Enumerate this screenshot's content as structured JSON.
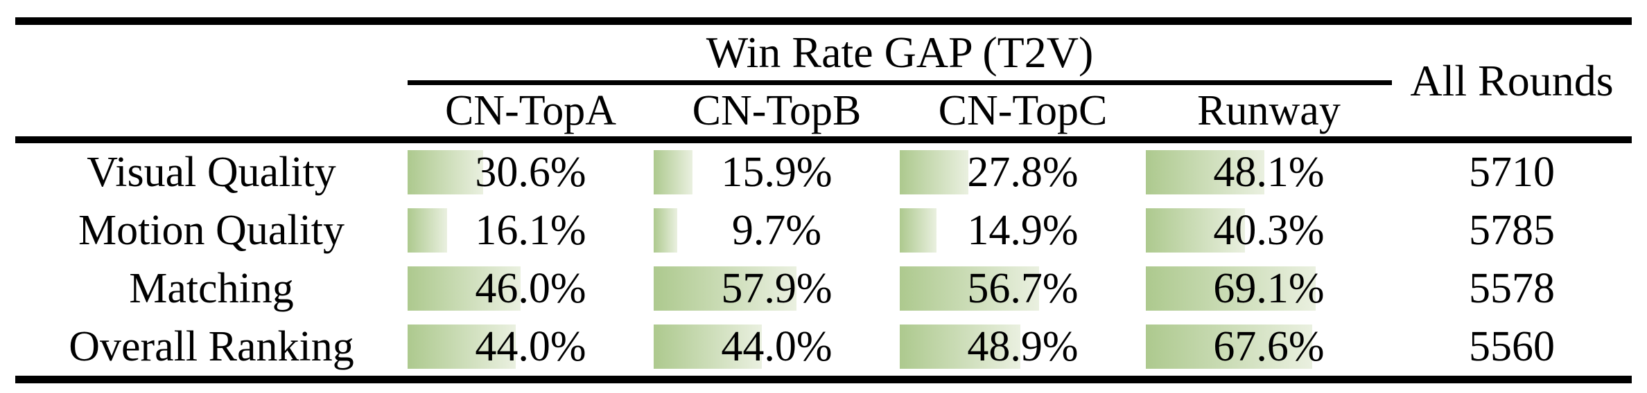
{
  "colors": {
    "background": "#ffffff",
    "text": "#000000",
    "rule": "#000000",
    "bar_gradient_start": "#adc98e",
    "bar_gradient_end": "#eaf0e0"
  },
  "table": {
    "group_header": "Win Rate GAP (T2V)",
    "all_rounds_header": "All Rounds",
    "columns": [
      "CN-TopA",
      "CN-TopB",
      "CN-TopC",
      "Runway"
    ],
    "rows": [
      {
        "label": "Visual Quality",
        "values": [
          "30.6%",
          "15.9%",
          "27.8%",
          "48.1%"
        ],
        "all_rounds": "5710"
      },
      {
        "label": "Motion Quality",
        "values": [
          "16.1%",
          "9.7%",
          "14.9%",
          "40.3%"
        ],
        "all_rounds": "5785"
      },
      {
        "label": "Matching",
        "values": [
          "46.0%",
          "57.9%",
          "56.7%",
          "69.1%"
        ],
        "all_rounds": "5578"
      },
      {
        "label": "Overall Ranking",
        "values": [
          "44.0%",
          "44.0%",
          "48.9%",
          "67.6%"
        ],
        "all_rounds": "5560"
      }
    ]
  }
}
